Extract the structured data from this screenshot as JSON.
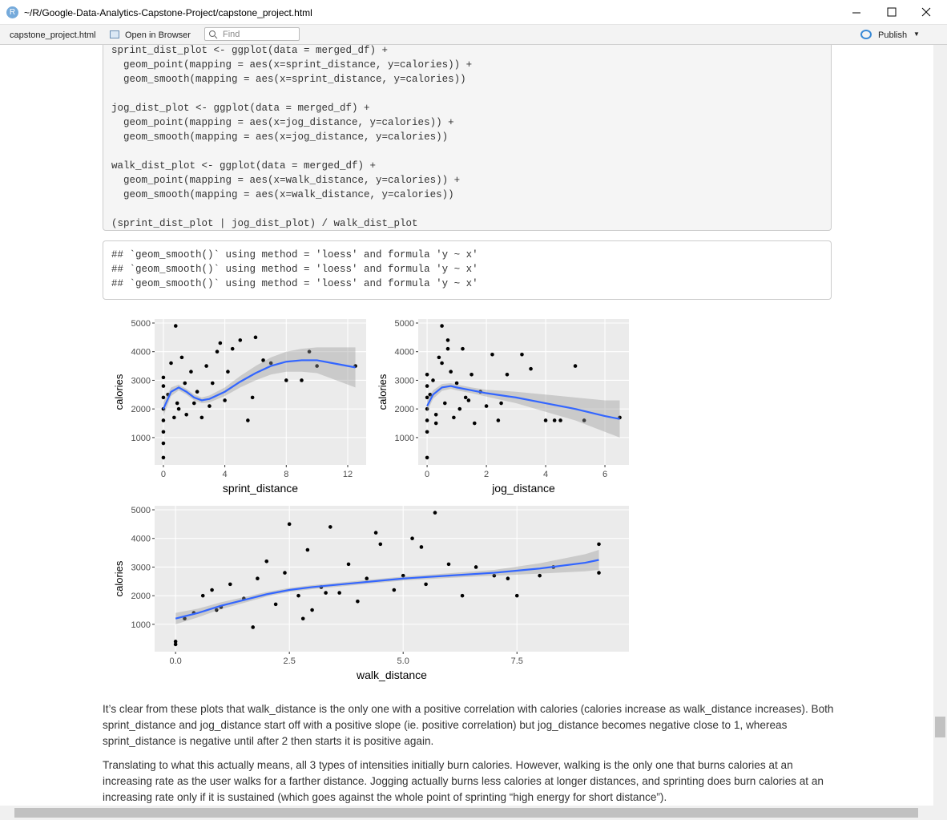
{
  "window": {
    "title": "~/R/Google-Data-Analytics-Capstone-Project/capstone_project.html"
  },
  "toolbar": {
    "tab": "capstone_project.html",
    "open": "Open in Browser",
    "find": "Find",
    "publish": "Publish"
  },
  "code": [
    [
      "sprint_dist_plot <- ggplot(data = merged_df) +",
      "  geom_point(mapping = aes(x=sprint_distance, y=calories)) +",
      "  geom_smooth(mapping = aes(x=sprint_distance, y=calories))"
    ],
    [
      "jog_dist_plot <- ggplot(data = merged_df) +",
      "  geom_point(mapping = aes(x=jog_distance, y=calories)) +",
      "  geom_smooth(mapping = aes(x=jog_distance, y=calories))"
    ],
    [
      "walk_dist_plot <- ggplot(data = merged_df) +",
      "  geom_point(mapping = aes(x=walk_distance, y=calories)) +",
      "  geom_smooth(mapping = aes(x=walk_distance, y=calories))"
    ],
    [
      "(sprint_dist_plot | jog_dist_plot) / walk_dist_plot"
    ]
  ],
  "output": [
    "## `geom_smooth()` using method = 'loess' and formula 'y ~ x'",
    "## `geom_smooth()` using method = 'loess' and formula 'y ~ x'",
    "## `geom_smooth()` using method = 'loess' and formula 'y ~ x'"
  ],
  "chart_data": [
    {
      "type": "scatter",
      "xlabel": "sprint_distance",
      "ylabel": "calories",
      "color": "#000000",
      "x": [
        0,
        0,
        0,
        0,
        0,
        0,
        0,
        0,
        0.3,
        0.5,
        0.8,
        1,
        1.2,
        1.5,
        1.8,
        2,
        2.2,
        2.5,
        2.8,
        3,
        3.2,
        3.5,
        4,
        4.2,
        4.5,
        5,
        5.5,
        6,
        6.5,
        7,
        8,
        9,
        9.5,
        10,
        12.5,
        0.7,
        1.4,
        3.7,
        5.8,
        0.9
      ],
      "values": [
        300,
        800,
        1200,
        1600,
        2000,
        2400,
        2800,
        3100,
        2500,
        3600,
        4900,
        2000,
        3800,
        1800,
        3300,
        2200,
        2600,
        1700,
        3500,
        2100,
        2900,
        4000,
        2300,
        3300,
        4100,
        4400,
        1600,
        4500,
        3700,
        3600,
        3000,
        3000,
        4000,
        3500,
        3500,
        1700,
        2900,
        4300,
        2400,
        2200
      ],
      "smooth": {
        "color": "#3366ff",
        "x": [
          0,
          0.5,
          1,
          1.5,
          2,
          2.5,
          3,
          4,
          5,
          6,
          7,
          8,
          9,
          10,
          11,
          12.5
        ],
        "values": [
          2000,
          2600,
          2750,
          2600,
          2400,
          2300,
          2350,
          2600,
          2950,
          3250,
          3500,
          3650,
          3700,
          3700,
          3600,
          3450
        ],
        "lower": [
          1750,
          2450,
          2650,
          2500,
          2300,
          2200,
          2230,
          2450,
          2750,
          3000,
          3200,
          3300,
          3300,
          3250,
          3050,
          2750
        ],
        "upper": [
          2250,
          2750,
          2850,
          2700,
          2500,
          2400,
          2470,
          2750,
          3150,
          3500,
          3800,
          4000,
          4100,
          4150,
          4150,
          4150
        ]
      },
      "xlim": [
        -0.57,
        13.2
      ],
      "ylim": [
        45,
        5140
      ],
      "xticks": [
        0,
        4,
        8,
        12
      ],
      "yticks": [
        1000,
        2000,
        3000,
        4000,
        5000
      ]
    },
    {
      "type": "scatter",
      "xlabel": "jog_distance",
      "ylabel": "calories",
      "color": "#000000",
      "x": [
        0,
        0,
        0,
        0,
        0,
        0,
        0,
        0.1,
        0.2,
        0.3,
        0.4,
        0.5,
        0.6,
        0.7,
        0.8,
        0.9,
        1,
        1.1,
        1.2,
        1.4,
        1.5,
        1.6,
        1.8,
        2,
        2.2,
        2.4,
        2.5,
        3.2,
        3.5,
        4,
        4.3,
        4.5,
        5,
        5.3,
        6.5,
        0.3,
        0.7,
        1.3,
        0.5,
        2.7
      ],
      "values": [
        300,
        1200,
        1600,
        2000,
        2400,
        2800,
        3200,
        2500,
        3000,
        1800,
        3800,
        4900,
        2200,
        4400,
        3300,
        1700,
        2900,
        2000,
        4100,
        2300,
        3200,
        1500,
        2600,
        2100,
        3900,
        1600,
        2200,
        3900,
        3400,
        1600,
        1600,
        1600,
        3500,
        1600,
        1700,
        1500,
        4100,
        2400,
        3600,
        3200
      ],
      "smooth": {
        "color": "#3366ff",
        "x": [
          0,
          0.2,
          0.5,
          0.8,
          1,
          1.5,
          2,
          3,
          4,
          5,
          6,
          6.5
        ],
        "values": [
          2100,
          2500,
          2750,
          2800,
          2750,
          2650,
          2550,
          2400,
          2200,
          2000,
          1750,
          1650
        ],
        "lower": [
          1900,
          2350,
          2630,
          2700,
          2650,
          2550,
          2430,
          2200,
          1900,
          1600,
          1200,
          1000
        ],
        "upper": [
          2300,
          2650,
          2870,
          2900,
          2850,
          2750,
          2670,
          2600,
          2500,
          2400,
          2300,
          2300
        ]
      },
      "xlim": [
        -0.3,
        6.81
      ],
      "ylim": [
        45,
        5140
      ],
      "xticks": [
        0,
        2,
        4,
        6
      ],
      "yticks": [
        1000,
        2000,
        3000,
        4000,
        5000
      ]
    },
    {
      "type": "scatter",
      "xlabel": "walk_distance",
      "ylabel": "calories",
      "color": "#000000",
      "x": [
        0,
        0,
        0.2,
        0.4,
        0.6,
        0.8,
        1,
        1.2,
        1.5,
        1.8,
        2,
        2.2,
        2.4,
        2.5,
        2.7,
        2.9,
        3,
        3.2,
        3.4,
        3.6,
        3.8,
        4,
        4.2,
        4.5,
        4.8,
        5,
        5.2,
        5.5,
        5.7,
        6,
        6.3,
        6.6,
        7,
        7.3,
        7.5,
        8,
        8.3,
        9.3,
        9.3,
        1.7,
        2.8,
        3.3,
        4.4,
        5.4,
        0.9
      ],
      "values": [
        300,
        400,
        1200,
        1400,
        2000,
        2200,
        1600,
        2400,
        1900,
        2600,
        3200,
        1700,
        2800,
        4500,
        2000,
        3600,
        1500,
        2300,
        4400,
        2100,
        3100,
        1800,
        2600,
        3800,
        2200,
        2700,
        4000,
        2400,
        4900,
        3100,
        2000,
        3000,
        2700,
        2600,
        2000,
        2700,
        3000,
        3800,
        2800,
        900,
        1200,
        2100,
        4200,
        3700,
        1500
      ],
      "smooth": {
        "color": "#3366ff",
        "x": [
          0,
          0.5,
          1,
          1.5,
          2,
          2.5,
          3,
          4,
          5,
          6,
          7,
          8,
          9,
          9.3
        ],
        "values": [
          1200,
          1400,
          1650,
          1850,
          2050,
          2200,
          2300,
          2450,
          2600,
          2700,
          2800,
          2950,
          3150,
          3250
        ],
        "lower": [
          1000,
          1250,
          1530,
          1750,
          1970,
          2130,
          2230,
          2380,
          2530,
          2620,
          2700,
          2770,
          2850,
          2900
        ],
        "upper": [
          1400,
          1550,
          1770,
          1950,
          2130,
          2270,
          2370,
          2520,
          2670,
          2780,
          2900,
          3130,
          3450,
          3600
        ]
      },
      "xlim": [
        -0.46,
        9.96
      ],
      "ylim": [
        45,
        5140
      ],
      "xticks": [
        {
          "value": 0,
          "label": "0.0"
        },
        {
          "value": 2.5,
          "label": "2.5"
        },
        {
          "value": 5,
          "label": "5.0"
        },
        {
          "value": 7.5,
          "label": "7.5"
        }
      ],
      "yticks": [
        1000,
        2000,
        3000,
        4000,
        5000
      ]
    }
  ],
  "paragraphs": [
    "It’s clear from these plots that walk_distance is the only one with a positive correlation with calories (calories increase as walk_distance increases). Both sprint_distance and jog_distance start off with a positive slope (ie. positive correlation) but jog_distance becomes negative close to 1, whereas sprint_distance is negative until after 2 then starts it is positive again.",
    "Translating to what this actually means, all 3 types of intensities initially burn calories. However, walking is the only one that burns calories at an increasing rate as the user walks for a farther distance. Jogging actually burns less calories at longer distances, and sprinting does burn calories at an increasing rate only if it is sustained (which goes against the whole point of sprinting “high energy for short distance”)."
  ]
}
